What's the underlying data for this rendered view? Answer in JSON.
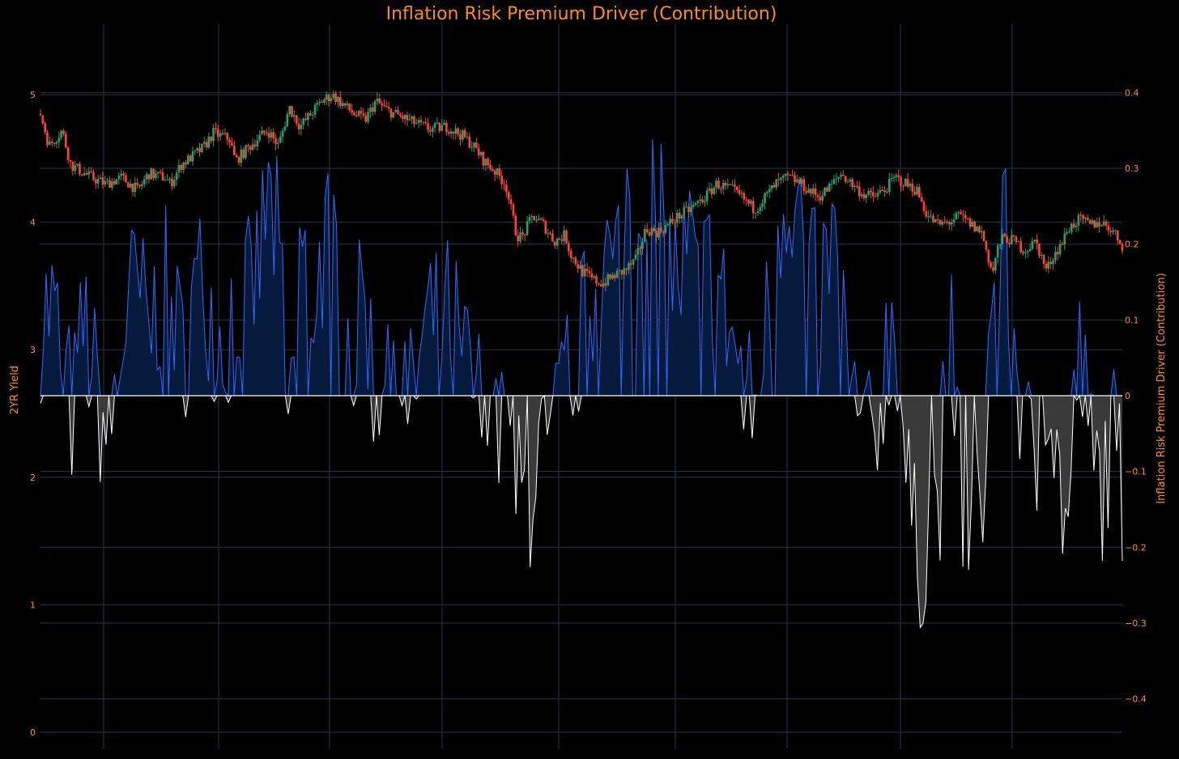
{
  "chart_data": {
    "type": "candlestick+area",
    "title": "Inflation Risk Premium Driver (Contribution)",
    "left_axis": {
      "label": "2YR Yield",
      "range": [
        -0.07,
        5.2
      ],
      "ticks": [
        0,
        1,
        2,
        3,
        4,
        5
      ],
      "tick_labels": [
        "0",
        "1",
        "2",
        "3",
        "4",
        "5"
      ]
    },
    "right_axis": {
      "label": "Inflation Risk Premium Driver (Contribution)",
      "range": [
        -0.445,
        0.42
      ],
      "ticks": [
        0.4,
        0.3,
        0.2,
        0.1,
        0,
        -0.1,
        -0.2,
        -0.3,
        -0.4
      ],
      "tick_labels": [
        "0.4",
        "0.3",
        "0.2",
        "0.1",
        "0",
        "−0.1",
        "−0.2",
        "−0.3",
        "−0.4"
      ]
    },
    "grid": true,
    "colors": {
      "background": "#000000",
      "grid": "#2a3547",
      "text": "#ff8c1a",
      "up_candle": "#2e9e6b",
      "down_candle": "#ff4433",
      "positive_fill": "#061a3d",
      "positive_line": "#2f6bff",
      "negative_fill": "#3a3a3a",
      "negative_line": "#ffffff",
      "zero_line": "#ffffff"
    },
    "yield_anchors": [
      [
        0,
        4.85
      ],
      [
        0.008,
        4.6
      ],
      [
        0.02,
        4.72
      ],
      [
        0.028,
        4.45
      ],
      [
        0.045,
        4.36
      ],
      [
        0.06,
        4.3
      ],
      [
        0.075,
        4.35
      ],
      [
        0.09,
        4.25
      ],
      [
        0.1,
        4.38
      ],
      [
        0.115,
        4.35
      ],
      [
        0.12,
        4.3
      ],
      [
        0.13,
        4.45
      ],
      [
        0.15,
        4.58
      ],
      [
        0.16,
        4.7
      ],
      [
        0.175,
        4.65
      ],
      [
        0.18,
        4.48
      ],
      [
        0.2,
        4.65
      ],
      [
        0.21,
        4.72
      ],
      [
        0.22,
        4.6
      ],
      [
        0.24,
        4.75
      ],
      [
        0.25,
        4.85
      ],
      [
        0.23,
        4.9
      ],
      [
        0.26,
        4.95
      ],
      [
        0.27,
        5.0
      ],
      [
        0.28,
        4.92
      ],
      [
        0.29,
        4.85
      ],
      [
        0.3,
        4.8
      ],
      [
        0.31,
        4.95
      ],
      [
        0.32,
        4.88
      ],
      [
        0.34,
        4.8
      ],
      [
        0.36,
        4.73
      ],
      [
        0.375,
        4.75
      ],
      [
        0.39,
        4.68
      ],
      [
        0.4,
        4.6
      ],
      [
        0.41,
        4.48
      ],
      [
        0.42,
        4.4
      ],
      [
        0.43,
        4.3
      ],
      [
        0.435,
        4.1
      ],
      [
        0.44,
        3.9
      ],
      [
        0.445,
        3.88
      ],
      [
        0.455,
        4.05
      ],
      [
        0.465,
        3.98
      ],
      [
        0.475,
        3.85
      ],
      [
        0.485,
        3.9
      ],
      [
        0.49,
        3.75
      ],
      [
        0.5,
        3.62
      ],
      [
        0.51,
        3.55
      ],
      [
        0.52,
        3.52
      ],
      [
        0.53,
        3.58
      ],
      [
        0.54,
        3.62
      ],
      [
        0.55,
        3.7
      ],
      [
        0.56,
        3.95
      ],
      [
        0.57,
        3.92
      ],
      [
        0.58,
        3.98
      ],
      [
        0.59,
        4.05
      ],
      [
        0.6,
        4.1
      ],
      [
        0.615,
        4.2
      ],
      [
        0.625,
        4.3
      ],
      [
        0.64,
        4.25
      ],
      [
        0.65,
        4.18
      ],
      [
        0.66,
        4.1
      ],
      [
        0.67,
        4.2
      ],
      [
        0.68,
        4.3
      ],
      [
        0.69,
        4.35
      ],
      [
        0.7,
        4.32
      ],
      [
        0.71,
        4.25
      ],
      [
        0.72,
        4.2
      ],
      [
        0.73,
        4.28
      ],
      [
        0.74,
        4.38
      ],
      [
        0.75,
        4.3
      ],
      [
        0.76,
        4.22
      ],
      [
        0.77,
        4.2
      ],
      [
        0.78,
        4.25
      ],
      [
        0.79,
        4.35
      ],
      [
        0.8,
        4.3
      ],
      [
        0.81,
        4.25
      ],
      [
        0.82,
        4.05
      ],
      [
        0.83,
        3.98
      ],
      [
        0.84,
        4.0
      ],
      [
        0.85,
        4.05
      ],
      [
        0.86,
        3.98
      ],
      [
        0.87,
        3.92
      ],
      [
        0.88,
        3.6
      ],
      [
        0.885,
        3.8
      ],
      [
        0.89,
        3.88
      ],
      [
        0.9,
        3.85
      ],
      [
        0.91,
        3.78
      ],
      [
        0.92,
        3.85
      ],
      [
        0.93,
        3.62
      ],
      [
        0.935,
        3.72
      ],
      [
        0.945,
        3.85
      ],
      [
        0.95,
        3.95
      ],
      [
        0.96,
        4.02
      ],
      [
        0.97,
        3.98
      ],
      [
        0.98,
        4.0
      ],
      [
        0.99,
        3.95
      ],
      [
        1.0,
        3.82
      ]
    ],
    "irp_anchors": [
      [
        0,
        0.1
      ],
      [
        0.01,
        0.12
      ],
      [
        0.02,
        0.05
      ],
      [
        0.03,
        -0.03
      ],
      [
        0.04,
        0.1
      ],
      [
        0.05,
        0.02
      ],
      [
        0.06,
        -0.05
      ],
      [
        0.07,
        0.0
      ],
      [
        0.08,
        0.12
      ],
      [
        0.09,
        0.14
      ],
      [
        0.1,
        0.08
      ],
      [
        0.11,
        0.13
      ],
      [
        0.12,
        0.15
      ],
      [
        0.13,
        0.05
      ],
      [
        0.14,
        0.12
      ],
      [
        0.15,
        0.16
      ],
      [
        0.16,
        0.1
      ],
      [
        0.17,
        0.06
      ],
      [
        0.18,
        0.14
      ],
      [
        0.19,
        0.12
      ],
      [
        0.2,
        0.16
      ],
      [
        0.21,
        0.26
      ],
      [
        0.22,
        0.2
      ],
      [
        0.23,
        -0.05
      ],
      [
        0.24,
        0.2
      ],
      [
        0.25,
        0.12
      ],
      [
        0.26,
        0.18
      ],
      [
        0.27,
        0.22
      ],
      [
        0.28,
        0.1
      ],
      [
        0.29,
        0.05
      ],
      [
        0.3,
        0.15
      ],
      [
        0.31,
        -0.02
      ],
      [
        0.32,
        0.08
      ],
      [
        0.33,
        0.1
      ],
      [
        0.34,
        -0.03
      ],
      [
        0.35,
        0.05
      ],
      [
        0.36,
        0.1
      ],
      [
        0.37,
        0.08
      ],
      [
        0.38,
        0.12
      ],
      [
        0.39,
        0.04
      ],
      [
        0.4,
        0.02
      ],
      [
        0.41,
        -0.03
      ],
      [
        0.42,
        -0.01
      ],
      [
        0.43,
        -0.1
      ],
      [
        0.44,
        -0.12
      ],
      [
        0.45,
        -0.15
      ],
      [
        0.46,
        -0.06
      ],
      [
        0.47,
        -0.1
      ],
      [
        0.48,
        -0.02
      ],
      [
        0.49,
        0.05
      ],
      [
        0.5,
        0.08
      ],
      [
        0.51,
        0.12
      ],
      [
        0.52,
        0.2
      ],
      [
        0.53,
        0.15
      ],
      [
        0.54,
        0.28
      ],
      [
        0.55,
        0.22
      ],
      [
        0.56,
        0.32
      ],
      [
        0.57,
        0.25
      ],
      [
        0.58,
        0.18
      ],
      [
        0.59,
        0.15
      ],
      [
        0.6,
        0.2
      ],
      [
        0.61,
        0.14
      ],
      [
        0.62,
        0.18
      ],
      [
        0.63,
        0.12
      ],
      [
        0.64,
        0.08
      ],
      [
        0.65,
        0.0
      ],
      [
        0.66,
        -0.02
      ],
      [
        0.67,
        0.08
      ],
      [
        0.68,
        0.22
      ],
      [
        0.69,
        0.28
      ],
      [
        0.7,
        0.25
      ],
      [
        0.71,
        0.18
      ],
      [
        0.72,
        0.12
      ],
      [
        0.73,
        0.2
      ],
      [
        0.74,
        0.15
      ],
      [
        0.75,
        -0.02
      ],
      [
        0.76,
        -0.06
      ],
      [
        0.77,
        -0.08
      ],
      [
        0.78,
        0.05
      ],
      [
        0.79,
        0.12
      ],
      [
        0.8,
        -0.1
      ],
      [
        0.81,
        -0.22
      ],
      [
        0.82,
        -0.18
      ],
      [
        0.83,
        -0.15
      ],
      [
        0.84,
        0.1
      ],
      [
        0.85,
        -0.12
      ],
      [
        0.86,
        -0.2
      ],
      [
        0.87,
        -0.15
      ],
      [
        0.88,
        0.15
      ],
      [
        0.89,
        0.22
      ],
      [
        0.9,
        0.08
      ],
      [
        0.91,
        -0.05
      ],
      [
        0.92,
        -0.12
      ],
      [
        0.93,
        0.05
      ],
      [
        0.94,
        -0.1
      ],
      [
        0.95,
        -0.18
      ],
      [
        0.96,
        0.08
      ],
      [
        0.97,
        -0.08
      ],
      [
        0.98,
        -0.12
      ],
      [
        0.99,
        -0.05
      ],
      [
        1.0,
        -0.12
      ]
    ]
  }
}
